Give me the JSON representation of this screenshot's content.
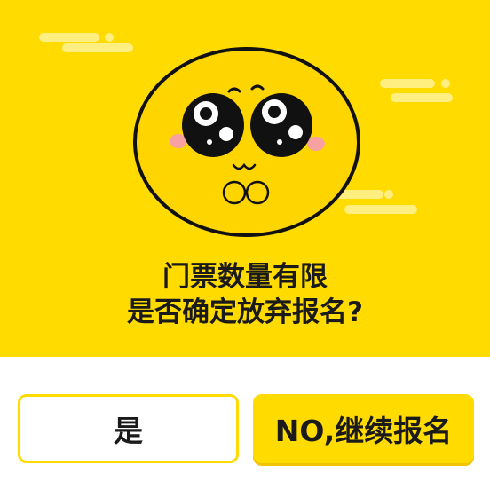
{
  "dialog": {
    "message_line1": "门票数量有限",
    "message_line2": "是否确定放弃报名?",
    "colors": {
      "accent": "#FFDB00",
      "text": "#1a1a1a",
      "cloud": "#FFEE80",
      "face": "#FFD500",
      "blush": "#F7A1A1"
    }
  },
  "buttons": {
    "yes_label": "是",
    "no_label": "NO,继续报名"
  },
  "illustration": {
    "icon": "pleading-face-icon"
  }
}
